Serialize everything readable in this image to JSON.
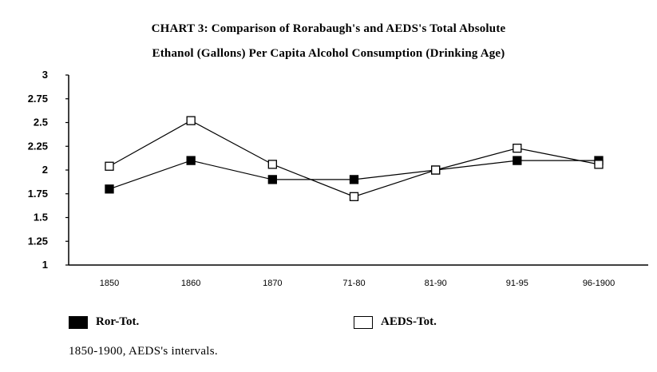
{
  "chart_data": {
    "type": "line",
    "title": "CHART 3: Comparison of Rorabaugh's and AEDS's Total Absolute",
    "subtitle": "Ethanol (Gallons) Per Capita Alcohol Consumption (Drinking Age)",
    "categories": [
      "1850",
      "1860",
      "1870",
      "71-80",
      "81-90",
      "91-95",
      "96-1900"
    ],
    "y_ticks": [
      "1",
      "1.25",
      "1.5",
      "1.75",
      "2",
      "2.25",
      "2.5",
      "2.75",
      "3"
    ],
    "ylim": [
      1,
      3
    ],
    "grid": false,
    "legend_position": "bottom",
    "series": [
      {
        "name": "Ror-Tot.",
        "marker": "filled-square",
        "values": [
          1.8,
          2.1,
          1.9,
          1.9,
          2.0,
          2.1,
          2.1
        ]
      },
      {
        "name": "AEDS-Tot.",
        "marker": "open-square",
        "values": [
          2.04,
          2.52,
          2.06,
          1.72,
          2.0,
          2.23,
          2.06
        ]
      }
    ]
  },
  "legend": {
    "ror_label": "Ror-Tot.",
    "aeds_label": "AEDS-Tot."
  },
  "footnote": "1850-1900, AEDS's intervals."
}
